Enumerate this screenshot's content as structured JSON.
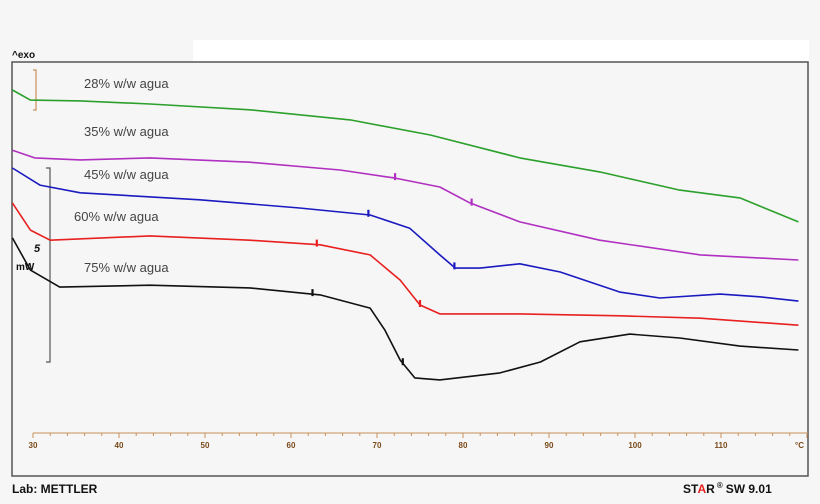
{
  "chart_data": {
    "type": "line",
    "title": "",
    "xlabel": "",
    "x_unit": "°C",
    "ylabel": "",
    "exo_label": "^exo",
    "scale_bar": {
      "value": "5",
      "unit": "mW"
    },
    "xlim": [
      27.6,
      120
    ],
    "x_ticks": [
      30,
      40,
      50,
      60,
      70,
      80,
      90,
      100,
      110
    ],
    "grid": false,
    "series": [
      {
        "name": "28% w/w agua",
        "color": "#2ca02c",
        "x": [
          27.6,
          29.7,
          35.5,
          43.6,
          55.2,
          66.9,
          76.2,
          86.6,
          95.9,
          105.2,
          112.2,
          119.0
        ],
        "y": [
          9.02,
          8.76,
          8.74,
          8.66,
          8.51,
          8.25,
          7.86,
          7.27,
          6.91,
          6.44,
          6.24,
          5.62
        ]
      },
      {
        "name": "35% w/w agua",
        "color": "#b030c0",
        "x": [
          27.6,
          30.2,
          35.5,
          43.6,
          55.2,
          65.7,
          72.1,
          77.3,
          80.8,
          86.6,
          95.9,
          107.6,
          119.0
        ],
        "y": [
          7.47,
          7.27,
          7.22,
          7.27,
          7.16,
          6.96,
          6.75,
          6.52,
          6.11,
          5.62,
          5.15,
          4.77,
          4.64
        ]
      },
      {
        "name": "45% w/w agua",
        "color": "#1a1ac0",
        "x": [
          27.6,
          30.8,
          35.5,
          49.4,
          61.0,
          69.2,
          73.8,
          77.3,
          79.1,
          82.0,
          86.6,
          91.3,
          98.3,
          102.9,
          109.9,
          114.5,
          119.0
        ],
        "y": [
          7.01,
          6.57,
          6.37,
          6.19,
          5.98,
          5.8,
          5.46,
          4.77,
          4.43,
          4.43,
          4.54,
          4.33,
          3.81,
          3.66,
          3.76,
          3.69,
          3.58
        ]
      },
      {
        "name": "60% w/w agua",
        "color": "#e82020",
        "x": [
          27.6,
          29.7,
          32.0,
          43.6,
          55.2,
          63.4,
          69.2,
          72.7,
          75.0,
          77.3,
          86.6,
          98.3,
          107.6,
          119.0
        ],
        "y": [
          6.11,
          5.41,
          5.15,
          5.26,
          5.15,
          5.03,
          4.77,
          4.12,
          3.48,
          3.25,
          3.25,
          3.2,
          3.14,
          2.96
        ]
      },
      {
        "name": "75% w/w agua",
        "color": "#111111",
        "x": [
          27.6,
          29.7,
          33.1,
          43.6,
          55.2,
          63.4,
          69.2,
          70.9,
          72.7,
          74.4,
          77.3,
          84.3,
          89.0,
          93.6,
          99.4,
          105.2,
          112.2,
          119.0
        ],
        "y": [
          5.21,
          4.38,
          3.94,
          3.99,
          3.92,
          3.74,
          3.4,
          2.84,
          2.06,
          1.6,
          1.55,
          1.73,
          2.01,
          2.53,
          2.73,
          2.63,
          2.42,
          2.32
        ]
      }
    ],
    "onset_markers": [
      {
        "series": 1,
        "x": [
          72.1,
          81.0
        ]
      },
      {
        "series": 2,
        "x": [
          69.0,
          79.0
        ]
      },
      {
        "series": 3,
        "x": [
          63.0,
          75.0
        ]
      },
      {
        "series": 4,
        "x": [
          62.5,
          73.0
        ]
      }
    ]
  },
  "footer": {
    "lab": "Lab: METTLER",
    "software_star": "STAR",
    "software_version": "SW 9.01"
  }
}
